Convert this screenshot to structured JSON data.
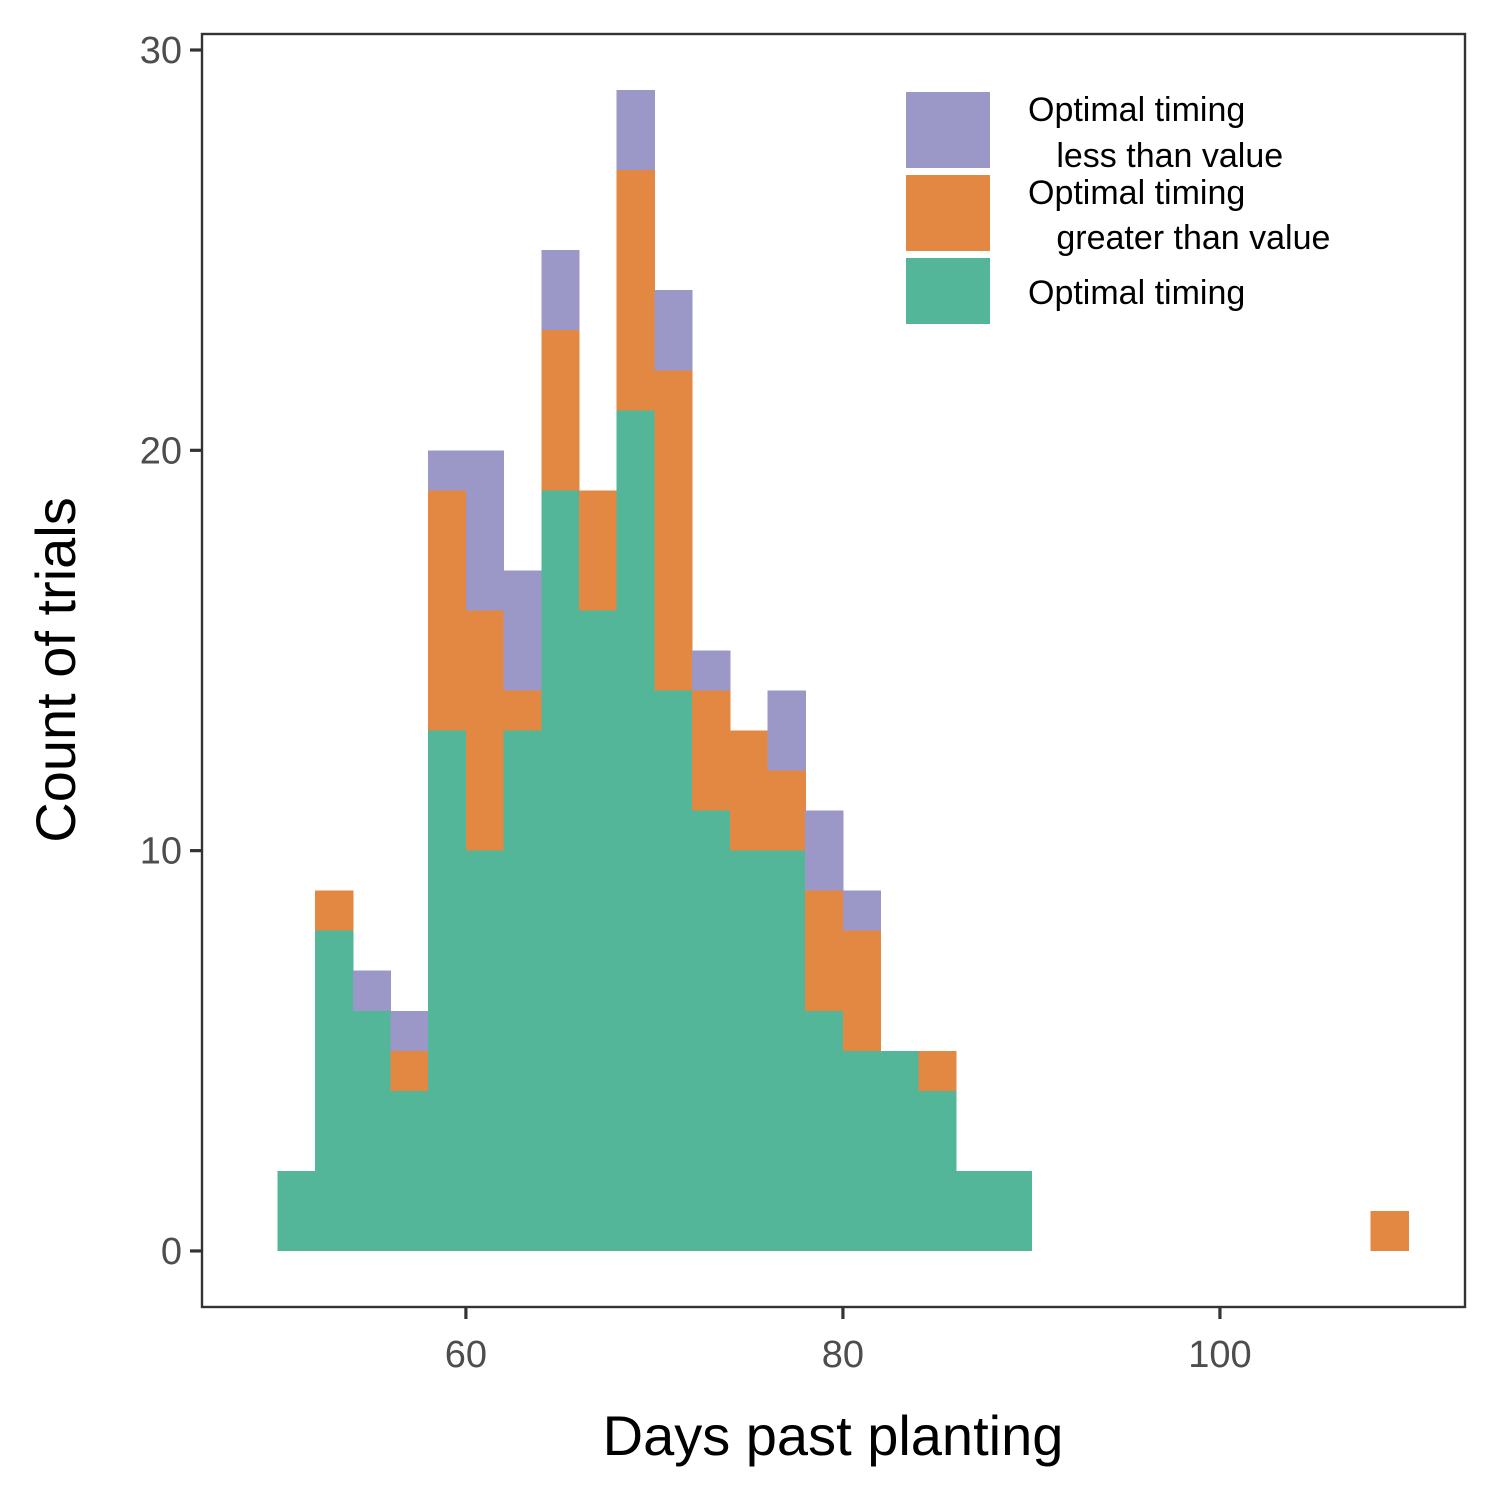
{
  "chart_data": {
    "type": "bar",
    "stacked": true,
    "xlabel": "Days past planting",
    "ylabel": "Count of trials",
    "xlim": [
      46,
      113
    ],
    "ylim": [
      -1.4,
      30.4
    ],
    "x_ticks": [
      60,
      80,
      100
    ],
    "y_ticks": [
      0,
      10,
      20,
      30
    ],
    "bin_width": 2,
    "bins": [
      {
        "x0": 50,
        "x1": 52
      },
      {
        "x0": 52,
        "x1": 54
      },
      {
        "x0": 54,
        "x1": 56
      },
      {
        "x0": 56,
        "x1": 58
      },
      {
        "x0": 58,
        "x1": 60
      },
      {
        "x0": 60,
        "x1": 62
      },
      {
        "x0": 62,
        "x1": 64
      },
      {
        "x0": 64,
        "x1": 66
      },
      {
        "x0": 66,
        "x1": 68
      },
      {
        "x0": 68,
        "x1": 70
      },
      {
        "x0": 70,
        "x1": 72
      },
      {
        "x0": 72,
        "x1": 74
      },
      {
        "x0": 74,
        "x1": 76
      },
      {
        "x0": 76,
        "x1": 78
      },
      {
        "x0": 78,
        "x1": 80
      },
      {
        "x0": 80,
        "x1": 82
      },
      {
        "x0": 82,
        "x1": 84
      },
      {
        "x0": 84,
        "x1": 86
      },
      {
        "x0": 86,
        "x1": 88
      },
      {
        "x0": 88,
        "x1": 90
      },
      {
        "x0": 108,
        "x1": 110
      }
    ],
    "series": [
      {
        "name": "Optimal timing",
        "color": "#53b699",
        "values": [
          2,
          8,
          6,
          4,
          13,
          10,
          13,
          19,
          16,
          21,
          14,
          11,
          10,
          10,
          6,
          5,
          5,
          4,
          2,
          2,
          0
        ]
      },
      {
        "name": "Optimal timing\n   greater than value",
        "color": "#e38842",
        "values": [
          0,
          1,
          0,
          1,
          6,
          6,
          1,
          4,
          3,
          6,
          8,
          3,
          3,
          2,
          3,
          3,
          0,
          1,
          0,
          0,
          1
        ]
      },
      {
        "name": "Optimal timing\n   less than value",
        "color": "#9b97c7",
        "values": [
          0,
          0,
          1,
          1,
          1,
          4,
          3,
          2,
          0,
          2,
          2,
          1,
          0,
          2,
          2,
          1,
          0,
          0,
          0,
          0,
          0
        ]
      }
    ],
    "legend": {
      "position": "top-right",
      "entries": [
        {
          "line1": "Optimal timing",
          "line2": "   less than value",
          "color": "#9b97c7"
        },
        {
          "line1": "Optimal timing",
          "line2": "   greater than value",
          "color": "#e38842"
        },
        {
          "line1": "Optimal timing",
          "line2": "",
          "color": "#53b699"
        }
      ]
    },
    "grid": false
  }
}
